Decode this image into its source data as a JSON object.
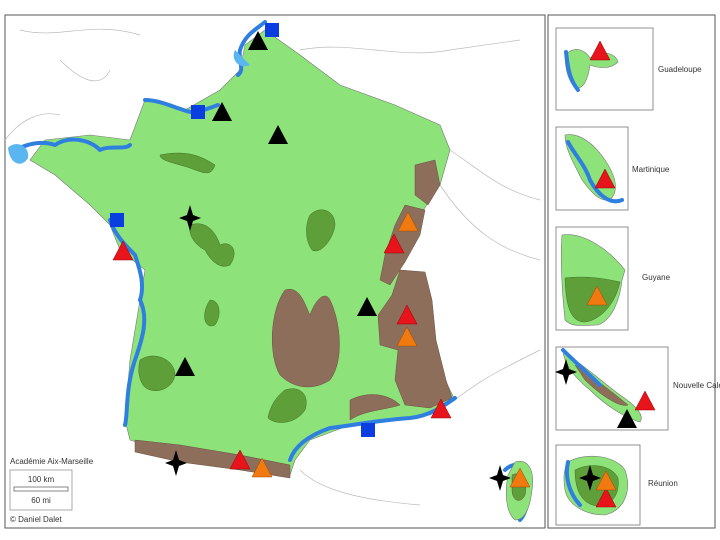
{
  "map": {
    "insets": [
      {
        "label": "Guadeloupe"
      },
      {
        "label": "Martinique"
      },
      {
        "label": "Guyane"
      },
      {
        "label": "Nouvelle Calédonie"
      },
      {
        "label": "Réunion"
      }
    ],
    "legend": {
      "title": "Académie Aix-Marseille",
      "scale_km": "100 km",
      "scale_mi": "60 mi",
      "credit": "© Daniel Dalet"
    }
  }
}
